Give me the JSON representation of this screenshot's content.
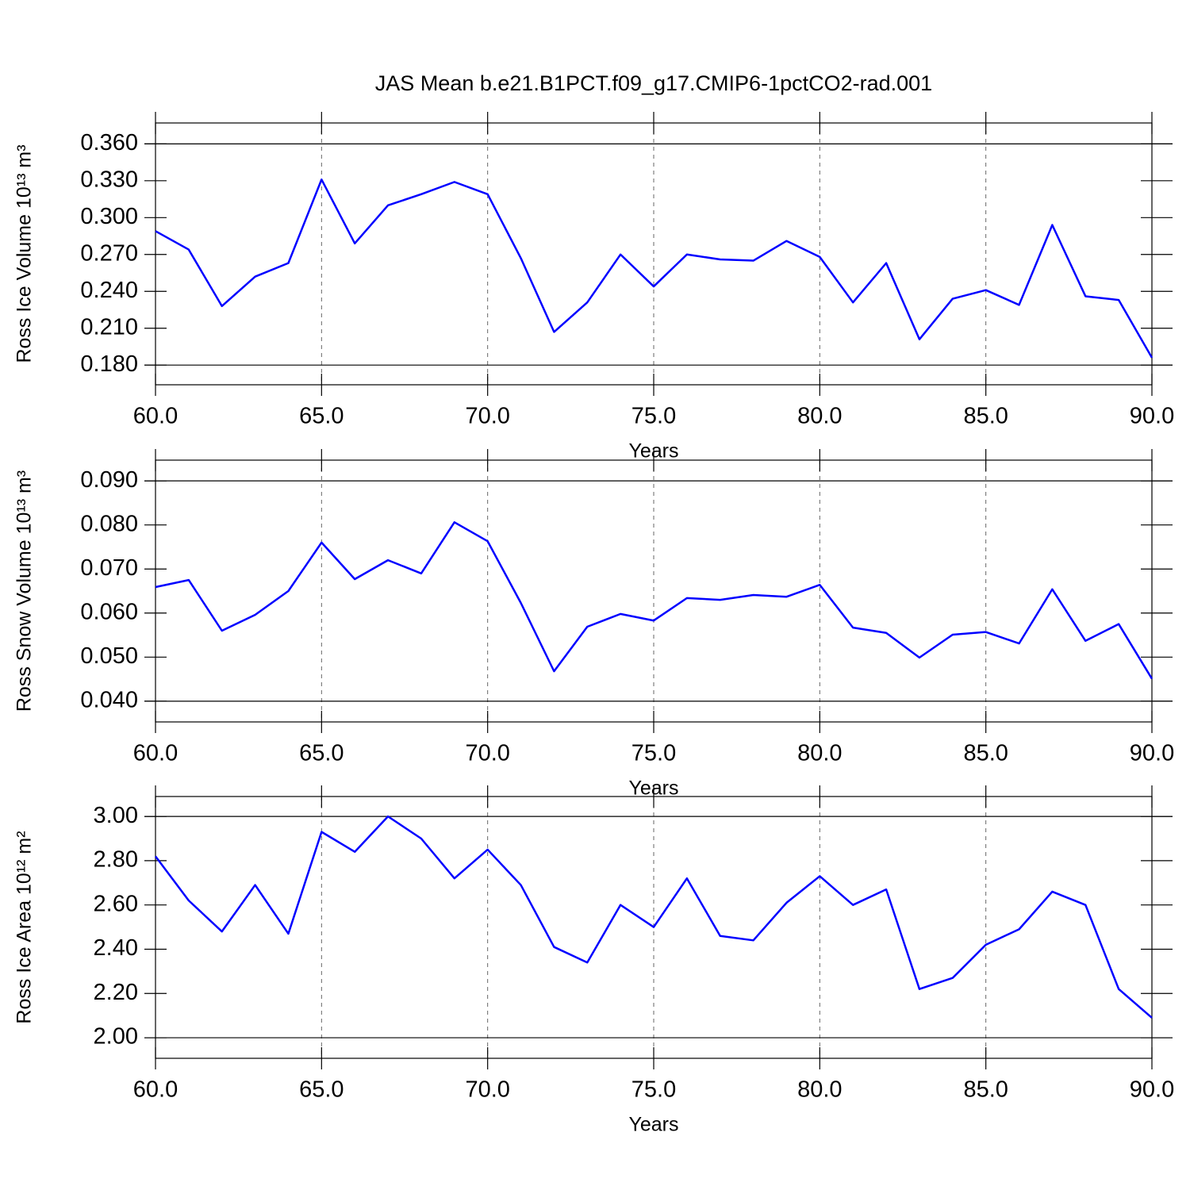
{
  "chart_data": [
    {
      "type": "line",
      "title": "JAS Mean b.e21.B1PCT.f09_g17.CMIP6-1pctCO2-rad.001",
      "ylabel": "Ross Ice Volume 10¹³ m³",
      "xlabel": "Years",
      "x": [
        60,
        61,
        62,
        63,
        64,
        65,
        66,
        67,
        68,
        69,
        70,
        71,
        72,
        73,
        74,
        75,
        76,
        77,
        78,
        79,
        80,
        81,
        82,
        83,
        84,
        85,
        86,
        87,
        88,
        89,
        90
      ],
      "series": [
        {
          "color": "#0000ff",
          "values": [
            0.289,
            0.274,
            0.228,
            0.252,
            0.263,
            0.331,
            0.279,
            0.31,
            0.319,
            0.329,
            0.319,
            0.267,
            0.207,
            0.231,
            0.27,
            0.244,
            0.27,
            0.266,
            0.265,
            0.281,
            0.268,
            0.231,
            0.263,
            0.201,
            0.234,
            0.241,
            0.229,
            0.294,
            0.236,
            0.233,
            0.186
          ]
        }
      ],
      "xlim": [
        60,
        90
      ],
      "xticks": [
        {
          "value": 60,
          "label": "60.0"
        },
        {
          "value": 65,
          "label": "65.0"
        },
        {
          "value": 70,
          "label": "70.0"
        },
        {
          "value": 75,
          "label": "75.0"
        },
        {
          "value": 80,
          "label": "80.0"
        },
        {
          "value": 85,
          "label": "85.0"
        },
        {
          "value": 90,
          "label": "90.0"
        }
      ],
      "ylim": [
        0.164,
        0.377
      ],
      "yticks": [
        {
          "value": 0.18,
          "label": "0.180"
        },
        {
          "value": 0.21,
          "label": "0.210"
        },
        {
          "value": 0.24,
          "label": "0.240"
        },
        {
          "value": 0.27,
          "label": "0.270"
        },
        {
          "value": 0.3,
          "label": "0.300"
        },
        {
          "value": 0.33,
          "label": "0.330"
        },
        {
          "value": 0.36,
          "label": "0.360"
        }
      ],
      "grid": true
    },
    {
      "type": "line",
      "ylabel": "Ross Snow Volume 10¹³ m³",
      "xlabel": "Years",
      "x": [
        60,
        61,
        62,
        63,
        64,
        65,
        66,
        67,
        68,
        69,
        70,
        71,
        72,
        73,
        74,
        75,
        76,
        77,
        78,
        79,
        80,
        81,
        82,
        83,
        84,
        85,
        86,
        87,
        88,
        89,
        90
      ],
      "series": [
        {
          "color": "#0000ff",
          "values": [
            0.0659,
            0.0675,
            0.056,
            0.0596,
            0.065,
            0.076,
            0.0677,
            0.072,
            0.069,
            0.0806,
            0.0763,
            0.0623,
            0.0468,
            0.0569,
            0.0598,
            0.0583,
            0.0634,
            0.063,
            0.0641,
            0.0637,
            0.0664,
            0.0567,
            0.0555,
            0.0499,
            0.0551,
            0.0557,
            0.0531,
            0.0654,
            0.0537,
            0.0575,
            0.0451
          ]
        }
      ],
      "xlim": [
        60,
        90
      ],
      "xticks": [
        {
          "value": 60,
          "label": "60.0"
        },
        {
          "value": 65,
          "label": "65.0"
        },
        {
          "value": 70,
          "label": "70.0"
        },
        {
          "value": 75,
          "label": "75.0"
        },
        {
          "value": 80,
          "label": "80.0"
        },
        {
          "value": 85,
          "label": "85.0"
        },
        {
          "value": 90,
          "label": "90.0"
        }
      ],
      "ylim": [
        0.0353,
        0.0947
      ],
      "yticks": [
        {
          "value": 0.04,
          "label": "0.040"
        },
        {
          "value": 0.05,
          "label": "0.050"
        },
        {
          "value": 0.06,
          "label": "0.060"
        },
        {
          "value": 0.07,
          "label": "0.070"
        },
        {
          "value": 0.08,
          "label": "0.080"
        },
        {
          "value": 0.09,
          "label": "0.090"
        }
      ],
      "grid": true
    },
    {
      "type": "line",
      "ylabel": "Ross Ice Area 10¹² m²",
      "xlabel": "Years",
      "x": [
        60,
        61,
        62,
        63,
        64,
        65,
        66,
        67,
        68,
        69,
        70,
        71,
        72,
        73,
        74,
        75,
        76,
        77,
        78,
        79,
        80,
        81,
        82,
        83,
        84,
        85,
        86,
        87,
        88,
        89,
        90
      ],
      "series": [
        {
          "color": "#0000ff",
          "values": [
            2.82,
            2.62,
            2.48,
            2.69,
            2.47,
            2.93,
            2.84,
            3.0,
            2.9,
            2.72,
            2.85,
            2.69,
            2.41,
            2.34,
            2.6,
            2.5,
            2.72,
            2.46,
            2.44,
            2.61,
            2.73,
            2.6,
            2.67,
            2.22,
            2.27,
            2.42,
            2.49,
            2.66,
            2.6,
            2.22,
            2.09
          ]
        }
      ],
      "xlim": [
        60,
        90
      ],
      "xticks": [
        {
          "value": 60,
          "label": "60.0"
        },
        {
          "value": 65,
          "label": "65.0"
        },
        {
          "value": 70,
          "label": "70.0"
        },
        {
          "value": 75,
          "label": "75.0"
        },
        {
          "value": 80,
          "label": "80.0"
        },
        {
          "value": 85,
          "label": "85.0"
        },
        {
          "value": 90,
          "label": "90.0"
        }
      ],
      "ylim": [
        1.907,
        3.09
      ],
      "yticks": [
        {
          "value": 2.0,
          "label": "2.00"
        },
        {
          "value": 2.2,
          "label": "2.20"
        },
        {
          "value": 2.4,
          "label": "2.40"
        },
        {
          "value": 2.6,
          "label": "2.60"
        },
        {
          "value": 2.8,
          "label": "2.80"
        },
        {
          "value": 3.0,
          "label": "3.00"
        }
      ],
      "grid": true
    }
  ]
}
